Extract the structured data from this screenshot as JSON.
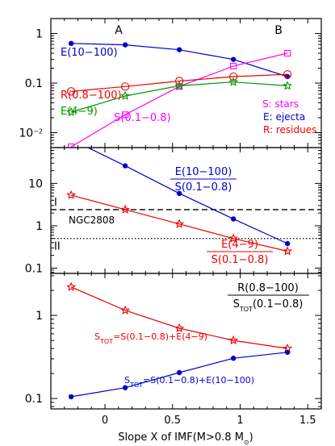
{
  "colors": {
    "stars": "#ff00ff",
    "ejecta": "#0000cc",
    "residues": "#ee0000",
    "e49": "#009900",
    "axis": "#000000"
  },
  "x_axis": {
    "label_prefix": "Slope X of IMF(M>0.8 M",
    "label_sub": "⊙",
    "label_suffix": ")",
    "range": [
      -0.4,
      1.6
    ],
    "ticks": [
      "0",
      "0.5",
      "1",
      "1.5"
    ],
    "tick_values": [
      0,
      0.5,
      1,
      1.5
    ]
  },
  "chart_data": [
    {
      "type": "line",
      "yscale": "log",
      "ylim": [
        0.005,
        2.0
      ],
      "yticks": [
        {
          "value": 1,
          "label": "1"
        },
        {
          "value": 0.1,
          "label": "0.1"
        },
        {
          "value": 0.01,
          "label": "10",
          "sup": "−2"
        }
      ],
      "x": [
        -0.25,
        0.15,
        0.55,
        0.95,
        1.35
      ],
      "series": [
        {
          "key": "ejecta",
          "name": "E(10−100)",
          "marker": "dot",
          "values": [
            0.63,
            0.59,
            0.47,
            0.3,
            0.135
          ]
        },
        {
          "key": "stars",
          "name": "S(0.1−0.8)",
          "marker": "square",
          "values": [
            0.0052,
            0.023,
            0.085,
            0.22,
            0.4
          ]
        },
        {
          "key": "residues",
          "name": "R(0.8−100)",
          "marker": "circle",
          "values": [
            0.068,
            0.085,
            0.11,
            0.135,
            0.15
          ]
        },
        {
          "key": "e49",
          "name": "E(4−9)",
          "marker": "star",
          "values": [
            0.026,
            0.055,
            0.088,
            0.105,
            0.088
          ]
        }
      ],
      "top_labels": [
        "A",
        "B"
      ],
      "legend": [
        "S: stars",
        "E: ejecta",
        "R: residues"
      ]
    },
    {
      "type": "line",
      "yscale": "log",
      "ylim": [
        0.075,
        70
      ],
      "yticks": [
        {
          "value": 10,
          "label": "10"
        },
        {
          "value": 1,
          "label": "1"
        },
        {
          "value": 0.1,
          "label": "0.1"
        }
      ],
      "x": [
        -0.25,
        0.15,
        0.55,
        0.95,
        1.35
      ],
      "series": [
        {
          "key": "ejecta",
          "name_num": "E(10−100)",
          "name_den": "S(0.1−0.8)",
          "marker": "dot",
          "values": [
            110,
            26,
            5.8,
            1.45,
            0.38
          ]
        },
        {
          "key": "residues",
          "name_num": "E(4−9)",
          "name_den": "S(0.1−0.8)",
          "marker": "star",
          "values": [
            5.3,
            2.4,
            1.1,
            0.5,
            0.25
          ]
        }
      ],
      "hlines": [
        {
          "value": 2.4,
          "style": "dashed",
          "label": "I"
        },
        {
          "value": 0.5,
          "style": "dotted",
          "label": "II"
        }
      ],
      "annotation": "NGC2808"
    },
    {
      "type": "line",
      "yscale": "log",
      "ylim": [
        0.075,
        3.2
      ],
      "yticks": [
        {
          "value": 1,
          "label": "1"
        },
        {
          "value": 0.1,
          "label": "0.1"
        }
      ],
      "x": [
        -0.25,
        0.15,
        0.55,
        0.95,
        1.35
      ],
      "series": [
        {
          "key": "residues",
          "marker": "star",
          "values": [
            2.2,
            1.15,
            0.7,
            0.5,
            0.4
          ],
          "label_pre": "S",
          "label_sub": "TOT",
          "label_post": "=S(0.1−0.8)+E(4−9)"
        },
        {
          "key": "ejecta",
          "marker": "dot",
          "values": [
            0.105,
            0.135,
            0.205,
            0.305,
            0.36
          ],
          "label_pre": "S",
          "label_sub": "TOT",
          "label_post": "=S(0.1−0.8)+E(10−100)"
        }
      ],
      "title_num": "R(0.8−100)",
      "title_den_pre": "S",
      "title_den_sub": "TOT",
      "title_den_post": "(0.1−0.8)"
    }
  ]
}
